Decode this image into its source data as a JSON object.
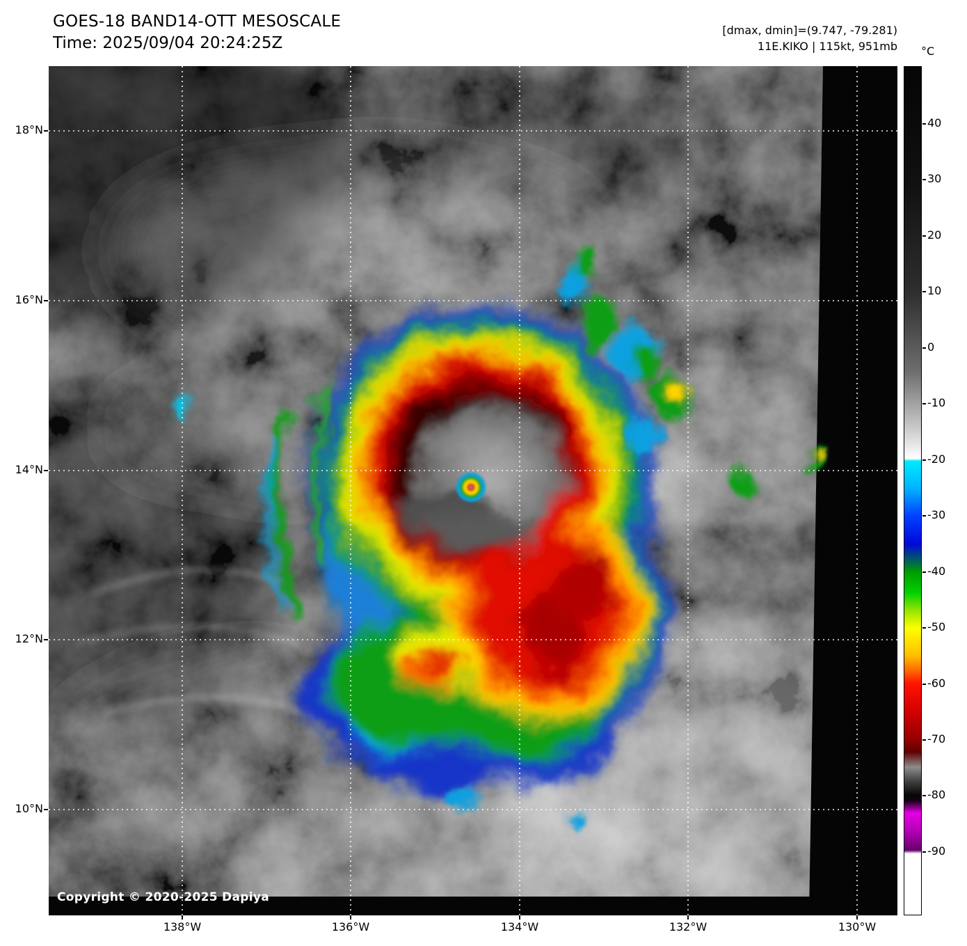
{
  "header": {
    "title": "GOES-18 BAND14-OTT MESOSCALE",
    "time_line": "Time: 2025/09/04 20:24:25Z",
    "dmax_dmin": "[dmax, dmin]=(9.747, -79.281)",
    "storm_info": "11E.KIKO | 115kt, 951mb"
  },
  "colorbar": {
    "unit": "°C",
    "ticks": [
      "40",
      "30",
      "20",
      "10",
      "0",
      "-10",
      "-20",
      "-30",
      "-40",
      "-50",
      "-60",
      "-70",
      "-80",
      "-90"
    ]
  },
  "axes": {
    "lat_labels": [
      "18°N",
      "16°N",
      "14°N",
      "12°N",
      "10°N"
    ],
    "lon_labels": [
      "138°W",
      "136°W",
      "134°W",
      "132°W",
      "130°W"
    ]
  },
  "map": {
    "copyright": "Copyright © 2020-2025 Dapiya"
  }
}
